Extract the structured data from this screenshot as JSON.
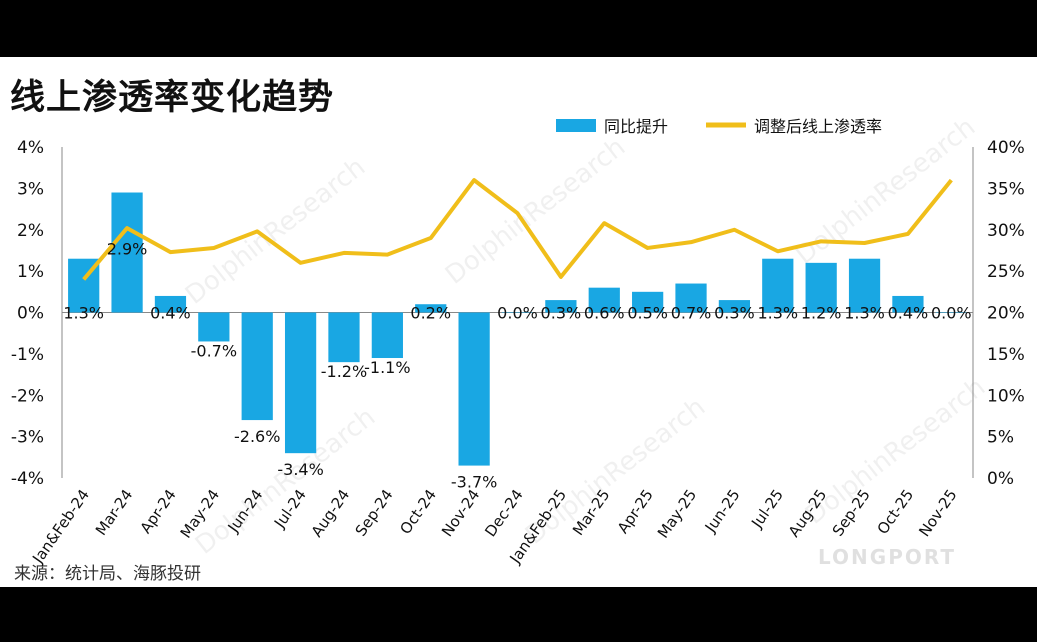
{
  "title": "线上渗透率变化趋势",
  "source": "来源：统计局、海豚投研",
  "watermark": "DolphinResearch",
  "logo": "LONGPORT",
  "colors": {
    "bar": "#19A7E3",
    "line": "#F0BE1A"
  },
  "chart_data": {
    "type": "bar",
    "categories": [
      "Jan&Feb-24",
      "Mar-24",
      "Apr-24",
      "May-24",
      "Jun-24",
      "Jul-24",
      "Aug-24",
      "Sep-24",
      "Oct-24",
      "Nov-24",
      "Dec-24",
      "Jan&Feb-25",
      "Mar-25",
      "Apr-25",
      "May-25",
      "Jun-25",
      "Jul-25",
      "Aug-25",
      "Sep-25",
      "Oct-25",
      "Nov-25"
    ],
    "series": [
      {
        "name": "同比提升",
        "type": "bar",
        "axis": "left",
        "values": [
          1.3,
          2.9,
          0.4,
          -0.7,
          -2.6,
          -3.4,
          -1.2,
          -1.1,
          0.2,
          -3.7,
          0.0,
          0.3,
          0.6,
          0.5,
          0.7,
          0.3,
          1.3,
          1.2,
          1.3,
          0.4,
          0.0
        ],
        "labels": [
          "1.3%",
          "2.9%",
          "0.4%",
          "-0.7%",
          "-2.6%",
          "-3.4%",
          "-1.2%",
          "-1.1%",
          "0.2%",
          "-3.7%",
          "0.0%",
          "0.3%",
          "0.6%",
          "0.5%",
          "0.7%",
          "0.3%",
          "1.3%",
          "1.2%",
          "1.3%",
          "0.4%",
          "0.0%"
        ]
      },
      {
        "name": "调整后线上渗透率",
        "type": "line",
        "axis": "right",
        "values": [
          24.0,
          30.2,
          27.3,
          27.8,
          29.8,
          26.0,
          27.2,
          27.0,
          29.0,
          36.0,
          32.0,
          24.3,
          30.8,
          27.8,
          28.5,
          30.0,
          27.4,
          28.6,
          28.4,
          29.5,
          36.0
        ]
      }
    ],
    "y_left": {
      "min": -4,
      "max": 4,
      "ticks": [
        "4%",
        "3%",
        "2%",
        "1%",
        "0%",
        "-1%",
        "-2%",
        "-3%",
        "-4%"
      ]
    },
    "y_right": {
      "min": 0,
      "max": 40,
      "ticks": [
        "40%",
        "35%",
        "30%",
        "25%",
        "20%",
        "15%",
        "10%",
        "5%",
        "0%"
      ]
    },
    "grid": false,
    "legend_position": "top-right"
  }
}
